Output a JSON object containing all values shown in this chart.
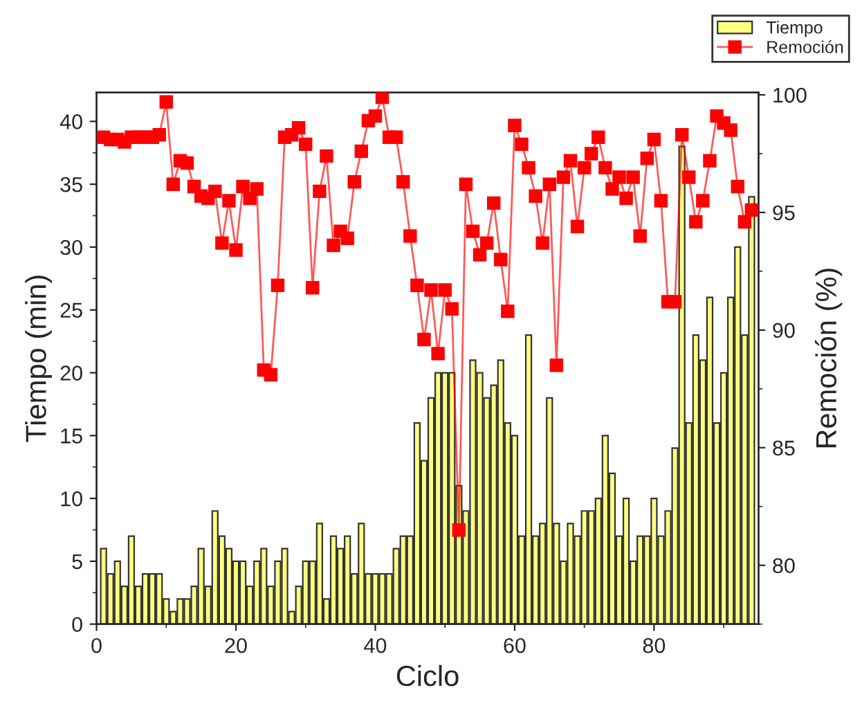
{
  "chart_data": {
    "type": "bar",
    "xlabel": "Ciclo",
    "ylabel": "Tiempo (min)",
    "y2label": "Remoción (%)",
    "x": [
      1,
      2,
      3,
      4,
      5,
      6,
      7,
      8,
      9,
      10,
      11,
      12,
      13,
      14,
      15,
      16,
      17,
      18,
      19,
      20,
      21,
      22,
      23,
      24,
      25,
      26,
      27,
      28,
      29,
      30,
      31,
      32,
      33,
      34,
      35,
      36,
      37,
      38,
      39,
      40,
      41,
      42,
      43,
      44,
      45,
      46,
      47,
      48,
      49,
      50,
      51,
      52,
      53,
      54,
      55,
      56,
      57,
      58,
      59,
      60,
      61,
      62,
      63,
      64,
      65,
      66,
      67,
      68,
      69,
      70,
      71,
      72,
      73,
      74,
      75,
      76,
      77,
      78,
      79,
      80,
      81,
      82,
      83,
      84,
      85,
      86,
      87,
      88,
      89,
      90,
      91,
      92,
      93,
      94
    ],
    "series": [
      {
        "name": "Tiempo",
        "color": "#ffff80",
        "values": [
          6,
          4,
          5,
          3,
          7,
          3,
          4,
          4,
          4,
          2,
          1,
          2,
          2,
          3,
          6,
          3,
          9,
          7,
          6,
          5,
          5,
          3,
          5,
          6,
          3,
          5,
          6,
          1,
          3,
          5,
          5,
          8,
          2,
          7,
          6,
          7,
          4,
          8,
          4,
          4,
          4,
          4,
          6,
          7,
          7,
          16,
          13,
          18,
          20,
          20,
          20,
          11,
          9,
          21,
          20,
          18,
          19,
          21,
          16,
          15,
          7,
          23,
          7,
          8,
          18,
          8,
          5,
          8,
          7,
          9,
          9,
          10,
          15,
          12,
          7,
          10,
          5,
          7,
          7,
          10,
          7,
          9,
          14,
          38,
          16,
          23,
          21,
          26,
          16,
          20,
          26,
          30,
          23,
          34
        ]
      },
      {
        "name": "Remoción",
        "type": "line",
        "axis": "y2",
        "color": "#ff0000",
        "marker": "square",
        "line_style": "solid",
        "values": [
          98.2,
          98.1,
          98.1,
          98.0,
          98.2,
          98.2,
          98.2,
          98.2,
          98.3,
          99.7,
          96.2,
          97.2,
          97.1,
          96.1,
          95.7,
          95.6,
          95.9,
          93.7,
          95.5,
          93.4,
          96.1,
          95.6,
          96.0,
          88.3,
          88.1,
          91.9,
          98.2,
          98.3,
          98.6,
          97.9,
          91.8,
          95.9,
          97.4,
          93.6,
          94.2,
          93.9,
          96.3,
          97.6,
          98.9,
          99.1,
          99.9,
          98.2,
          98.2,
          96.3,
          94.0,
          91.9,
          89.6,
          91.7,
          89.0,
          91.7,
          90.9,
          81.5,
          96.2,
          94.2,
          93.2,
          93.7,
          95.4,
          93.0,
          90.8,
          98.7,
          97.9,
          96.9,
          95.7,
          93.7,
          96.2,
          88.5,
          96.5,
          97.2,
          94.4,
          96.9,
          97.5,
          98.2,
          96.9,
          96.0,
          96.5,
          95.6,
          96.5,
          94.0,
          97.3,
          98.1,
          95.5,
          91.2,
          91.2,
          98.3,
          96.5,
          94.6,
          95.5,
          97.2,
          99.1,
          98.8,
          98.5,
          96.1,
          94.6,
          95.1
        ]
      }
    ],
    "xlim": [
      0,
      95
    ],
    "xticks": [
      0,
      20,
      40,
      60,
      80
    ],
    "ylim": [
      0,
      42.3
    ],
    "yticks": [
      0,
      5,
      10,
      15,
      20,
      25,
      30,
      35,
      40
    ],
    "y2lim": [
      77.5,
      100.1
    ],
    "y2ticks": [
      80,
      85,
      90,
      95,
      100
    ],
    "legend": "top right",
    "grid": false
  }
}
